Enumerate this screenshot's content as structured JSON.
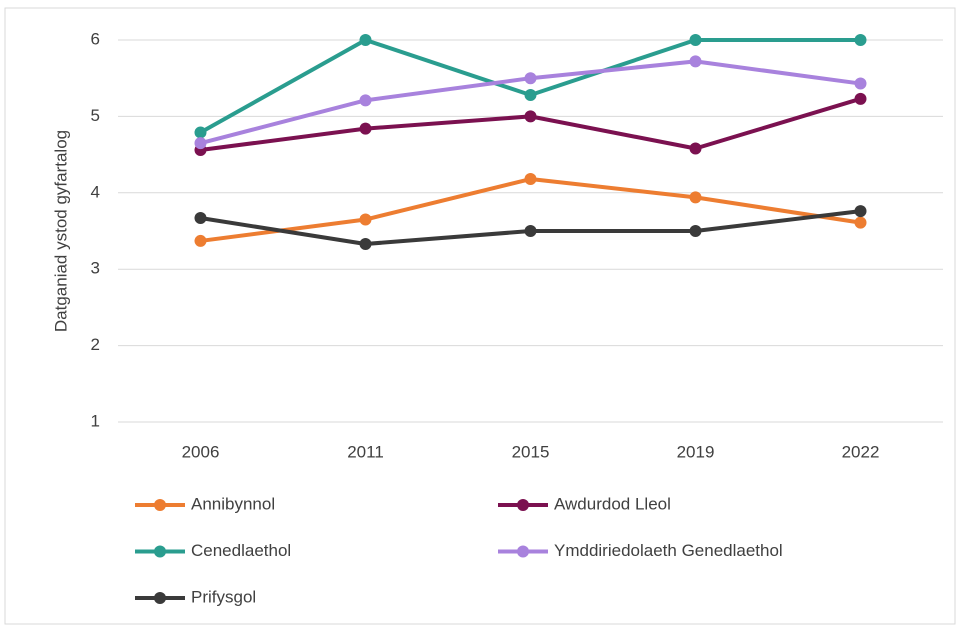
{
  "chart_data": {
    "type": "line",
    "y_label": "Datganiad ystod gyfartalog",
    "categories": [
      "2006",
      "2011",
      "2015",
      "2019",
      "2022"
    ],
    "series": [
      {
        "name": "Annibynnol",
        "color": "#ed7d31",
        "values": [
          3.37,
          3.65,
          4.18,
          3.94,
          3.61
        ]
      },
      {
        "name": "Awdurdod Lleol",
        "color": "#7b1150",
        "values": [
          4.56,
          4.84,
          5.0,
          4.58,
          5.23
        ]
      },
      {
        "name": "Cenedlaethol",
        "color": "#2a9d8f",
        "values": [
          4.79,
          6,
          5.28,
          6,
          6
        ]
      },
      {
        "name": "Ymddiriedolaeth Genedlaethol",
        "color": "#a882dd",
        "values": [
          4.65,
          5.21,
          5.5,
          5.72,
          5.43
        ]
      },
      {
        "name": "Prifysgol",
        "color": "#3a3a3a",
        "values": [
          3.67,
          3.33,
          3.5,
          3.5,
          3.76
        ]
      }
    ],
    "ylim": [
      1,
      6
    ],
    "yticks": [
      1,
      2,
      3,
      4,
      5,
      6
    ],
    "grid": true,
    "legend": "bottom"
  }
}
